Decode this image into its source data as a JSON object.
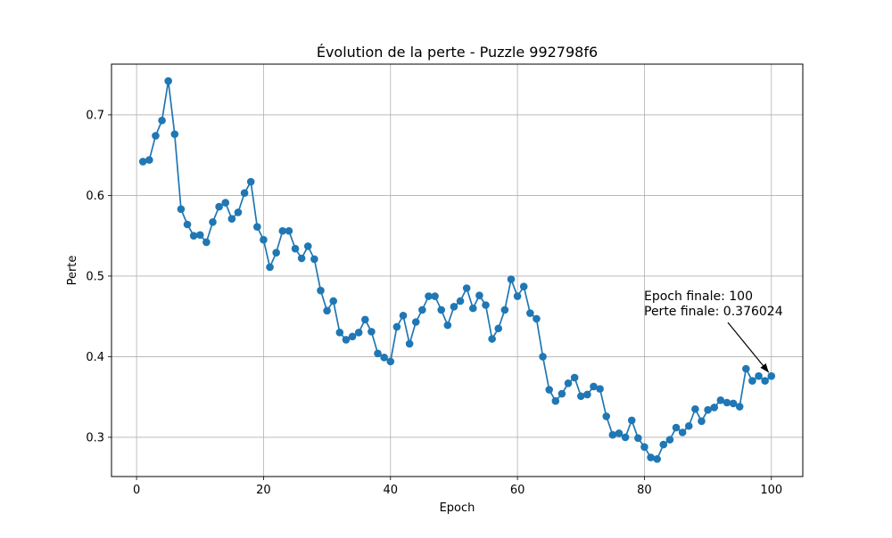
{
  "chart_data": {
    "type": "line",
    "title": "Évolution de la perte - Puzzle 992798f6",
    "xlabel": "Epoch",
    "ylabel": "Perte",
    "xlim": [
      -3.95,
      104.95
    ],
    "ylim": [
      0.2513,
      0.7629
    ],
    "xticks": [
      0,
      20,
      40,
      60,
      80,
      100
    ],
    "xtick_labels": [
      "0",
      "20",
      "40",
      "60",
      "80",
      "100"
    ],
    "yticks": [
      0.3,
      0.4,
      0.5,
      0.6,
      0.7
    ],
    "ytick_labels": [
      "0.3",
      "0.4",
      "0.5",
      "0.6",
      "0.7"
    ],
    "grid": true,
    "color": "#1f77b4",
    "markers": true,
    "series": [
      {
        "x": [
          1,
          2,
          3,
          4,
          5,
          6,
          7,
          8,
          9,
          10,
          11,
          12,
          13,
          14,
          15,
          16,
          17,
          18,
          19,
          20,
          21,
          22,
          23,
          24,
          25,
          26,
          27,
          28,
          29,
          30,
          31,
          32,
          33,
          34,
          35,
          36,
          37,
          38,
          39,
          40,
          41,
          42,
          43,
          44,
          45,
          46,
          47,
          48,
          49,
          50,
          51,
          52,
          53,
          54,
          55,
          56,
          57,
          58,
          59,
          60,
          61,
          62,
          63,
          64,
          65,
          66,
          67,
          68,
          69,
          70,
          71,
          72,
          73,
          74,
          75,
          76,
          77,
          78,
          79,
          80,
          81,
          82,
          83,
          84,
          85,
          86,
          87,
          88,
          89,
          90,
          91,
          92,
          93,
          94,
          95,
          96,
          97,
          98,
          99,
          100
        ],
        "values": [
          0.642,
          0.644,
          0.674,
          0.693,
          0.742,
          0.676,
          0.583,
          0.564,
          0.55,
          0.551,
          0.542,
          0.567,
          0.586,
          0.591,
          0.571,
          0.579,
          0.603,
          0.617,
          0.561,
          0.545,
          0.511,
          0.529,
          0.556,
          0.556,
          0.534,
          0.522,
          0.537,
          0.521,
          0.482,
          0.457,
          0.469,
          0.43,
          0.421,
          0.425,
          0.43,
          0.446,
          0.431,
          0.404,
          0.399,
          0.394,
          0.437,
          0.451,
          0.416,
          0.443,
          0.458,
          0.475,
          0.475,
          0.458,
          0.439,
          0.462,
          0.469,
          0.485,
          0.46,
          0.476,
          0.464,
          0.422,
          0.435,
          0.458,
          0.496,
          0.475,
          0.487,
          0.454,
          0.447,
          0.4,
          0.359,
          0.345,
          0.354,
          0.367,
          0.374,
          0.351,
          0.353,
          0.363,
          0.36,
          0.326,
          0.303,
          0.305,
          0.3,
          0.321,
          0.299,
          0.288,
          0.275,
          0.273,
          0.291,
          0.297,
          0.312,
          0.306,
          0.314,
          0.335,
          0.32,
          0.334,
          0.337,
          0.346,
          0.343,
          0.342,
          0.338,
          0.385,
          0.37,
          0.376,
          0.37,
          0.376
        ]
      }
    ],
    "annotation": {
      "lines": [
        "Epoch finale: 100",
        "Perte finale: 0.376024"
      ],
      "x": 100,
      "y": 0.376
    }
  }
}
